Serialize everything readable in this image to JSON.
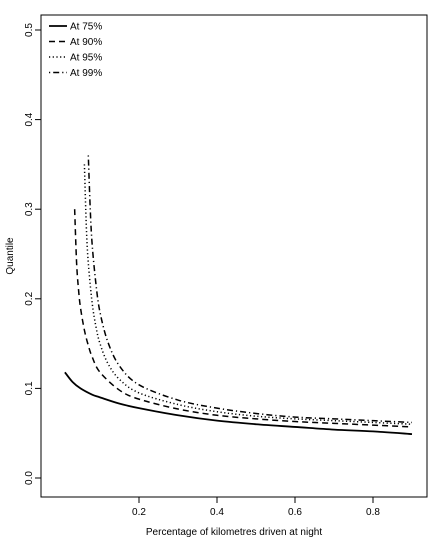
{
  "chart_data": {
    "type": "line",
    "title": "",
    "xlabel": "Percentage of kilometres driven at night",
    "ylabel": "Quantile",
    "xlim": [
      0.0,
      0.9
    ],
    "ylim": [
      0.0,
      0.5
    ],
    "x_ticks": [
      0.2,
      0.4,
      0.6,
      0.8
    ],
    "x_tick_labels": [
      "0.2",
      "0.4",
      "0.6",
      "0.8"
    ],
    "y_ticks": [
      0.0,
      0.1,
      0.2,
      0.3,
      0.4,
      0.5
    ],
    "y_tick_labels": [
      "0.0",
      "0.1",
      "0.2",
      "0.3",
      "0.4",
      "0.5"
    ],
    "grid": false,
    "legend_position": "top-left",
    "series": [
      {
        "name": "At 75%",
        "line_style": "solid",
        "x": [
          0.01,
          0.03,
          0.05,
          0.08,
          0.1,
          0.15,
          0.2,
          0.3,
          0.4,
          0.5,
          0.6,
          0.7,
          0.8,
          0.9
        ],
        "y": [
          0.118,
          0.107,
          0.1,
          0.093,
          0.09,
          0.083,
          0.078,
          0.07,
          0.064,
          0.06,
          0.057,
          0.054,
          0.052,
          0.049
        ]
      },
      {
        "name": "At 90%",
        "line_style": "dashed",
        "x": [
          0.035,
          0.04,
          0.045,
          0.05,
          0.06,
          0.07,
          0.08,
          0.1,
          0.15,
          0.2,
          0.3,
          0.4,
          0.5,
          0.6,
          0.7,
          0.8,
          0.9
        ],
        "y": [
          0.3,
          0.24,
          0.21,
          0.19,
          0.165,
          0.148,
          0.135,
          0.118,
          0.098,
          0.088,
          0.077,
          0.07,
          0.066,
          0.063,
          0.061,
          0.059,
          0.057
        ]
      },
      {
        "name": "At 95%",
        "line_style": "dotted",
        "x": [
          0.06,
          0.065,
          0.07,
          0.08,
          0.09,
          0.1,
          0.12,
          0.15,
          0.2,
          0.3,
          0.4,
          0.5,
          0.6,
          0.7,
          0.8,
          0.9
        ],
        "y": [
          0.35,
          0.28,
          0.24,
          0.195,
          0.168,
          0.15,
          0.128,
          0.11,
          0.095,
          0.082,
          0.074,
          0.069,
          0.066,
          0.064,
          0.062,
          0.06
        ]
      },
      {
        "name": "At 99%",
        "line_style": "dotdash",
        "x": [
          0.07,
          0.075,
          0.08,
          0.09,
          0.1,
          0.12,
          0.15,
          0.2,
          0.3,
          0.4,
          0.5,
          0.6,
          0.7,
          0.8,
          0.9
        ],
        "y": [
          0.36,
          0.3,
          0.26,
          0.215,
          0.185,
          0.152,
          0.125,
          0.104,
          0.087,
          0.078,
          0.072,
          0.068,
          0.066,
          0.064,
          0.062
        ]
      }
    ]
  }
}
